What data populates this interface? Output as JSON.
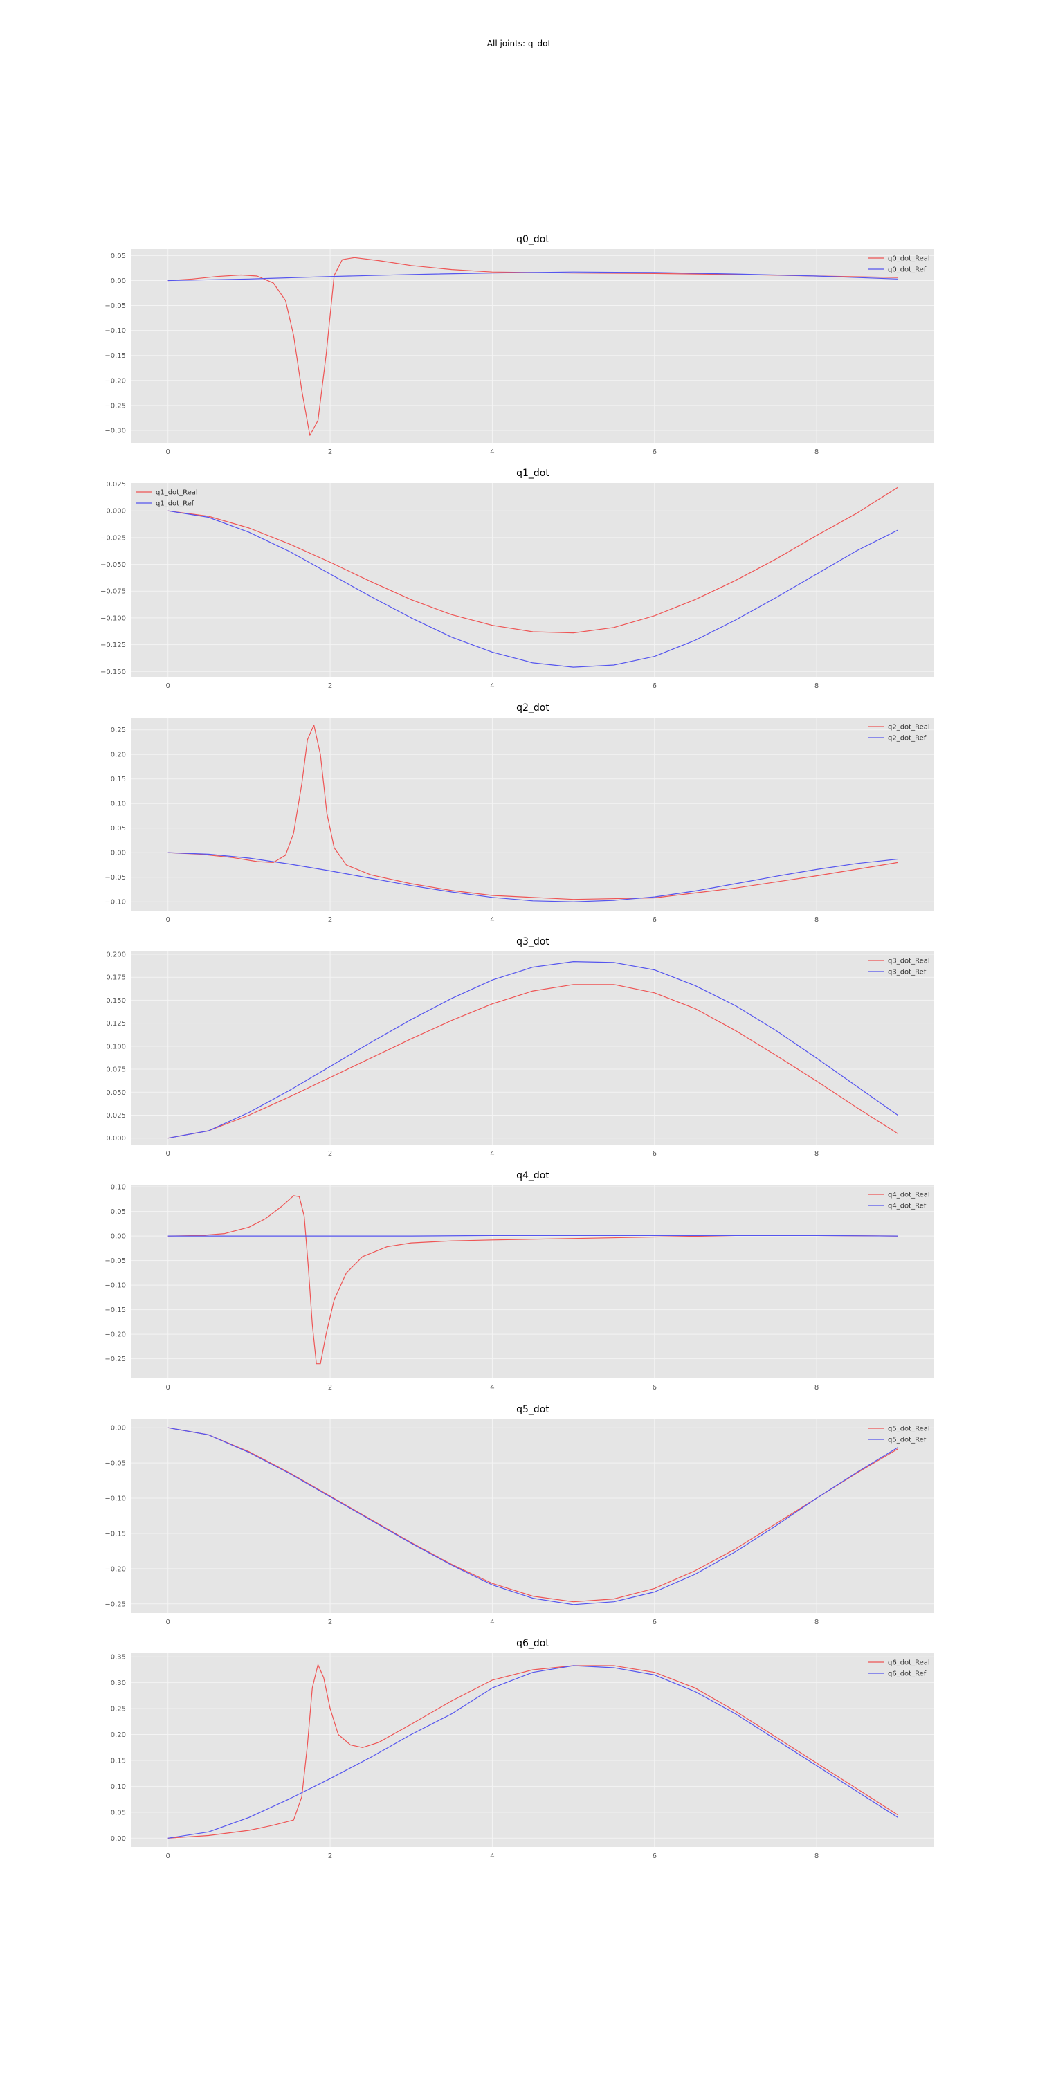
{
  "figure": {
    "title": "All joints: q_dot"
  },
  "colors": {
    "real": "#ee5555",
    "ref": "#5555ee",
    "panel_bg": "#e5e5e5",
    "grid": "#f4f4f4",
    "tick_text": "#555555"
  },
  "chart_data": [
    {
      "type": "line",
      "title": "q0_dot",
      "xlim": [
        -0.45,
        9.45
      ],
      "ylim": [
        -0.325,
        0.063
      ],
      "xticks": [
        0,
        2,
        4,
        6,
        8
      ],
      "yticks": [
        0.05,
        0.0,
        -0.05,
        -0.1,
        -0.15,
        -0.2,
        -0.25,
        -0.3
      ],
      "ytick_labels": [
        "0.05",
        "0.00",
        "−0.05",
        "−0.10",
        "−0.15",
        "−0.20",
        "−0.25",
        "−0.30"
      ],
      "grid": true,
      "legend": "upper-right",
      "series": [
        {
          "name": "q0_dot_Real",
          "color": "#ee5555",
          "x": [
            0,
            0.3,
            0.6,
            0.9,
            1.1,
            1.3,
            1.45,
            1.55,
            1.65,
            1.75,
            1.85,
            1.95,
            2.05,
            2.15,
            2.3,
            2.6,
            3,
            3.5,
            4,
            5,
            6,
            7,
            8,
            9
          ],
          "y": [
            0,
            0.003,
            0.008,
            0.011,
            0.009,
            -0.005,
            -0.04,
            -0.11,
            -0.22,
            -0.31,
            -0.28,
            -0.15,
            0.01,
            0.042,
            0.046,
            0.04,
            0.03,
            0.022,
            0.017,
            0.015,
            0.014,
            0.012,
            0.009,
            0.006
          ]
        },
        {
          "name": "q0_dot_Ref",
          "color": "#5555ee",
          "x": [
            0,
            1,
            2,
            3,
            4,
            5,
            6,
            7,
            8,
            9
          ],
          "y": [
            0,
            0.003,
            0.008,
            0.012,
            0.015,
            0.017,
            0.016,
            0.013,
            0.009,
            0.003
          ]
        }
      ]
    },
    {
      "type": "line",
      "title": "q1_dot",
      "xlim": [
        -0.45,
        9.45
      ],
      "ylim": [
        -0.155,
        0.026
      ],
      "xticks": [
        0,
        2,
        4,
        6,
        8
      ],
      "yticks": [
        0.025,
        0.0,
        -0.025,
        -0.05,
        -0.075,
        -0.1,
        -0.125,
        -0.15
      ],
      "ytick_labels": [
        "0.025",
        "0.000",
        "−0.025",
        "−0.050",
        "−0.075",
        "−0.100",
        "−0.125",
        "−0.150"
      ],
      "grid": true,
      "legend": "upper-left",
      "series": [
        {
          "name": "q1_dot_Real",
          "color": "#ee5555",
          "x": [
            0,
            0.5,
            1,
            1.5,
            2,
            2.5,
            3,
            3.5,
            4,
            4.5,
            5,
            5.5,
            6,
            6.5,
            7,
            7.5,
            8,
            8.5,
            9
          ],
          "y": [
            0,
            -0.005,
            -0.016,
            -0.031,
            -0.048,
            -0.066,
            -0.083,
            -0.097,
            -0.107,
            -0.113,
            -0.114,
            -0.109,
            -0.098,
            -0.083,
            -0.065,
            -0.045,
            -0.023,
            -0.002,
            0.022
          ]
        },
        {
          "name": "q1_dot_Ref",
          "color": "#5555ee",
          "x": [
            0,
            0.5,
            1,
            1.5,
            2,
            2.5,
            3,
            3.5,
            4,
            4.5,
            5,
            5.5,
            6,
            6.5,
            7,
            7.5,
            8,
            8.5,
            9
          ],
          "y": [
            0,
            -0.006,
            -0.02,
            -0.038,
            -0.059,
            -0.08,
            -0.1,
            -0.118,
            -0.132,
            -0.142,
            -0.146,
            -0.144,
            -0.136,
            -0.121,
            -0.102,
            -0.081,
            -0.059,
            -0.037,
            -0.018
          ]
        }
      ]
    },
    {
      "type": "line",
      "title": "q2_dot",
      "xlim": [
        -0.45,
        9.45
      ],
      "ylim": [
        -0.118,
        0.275
      ],
      "xticks": [
        0,
        2,
        4,
        6,
        8
      ],
      "yticks": [
        0.25,
        0.2,
        0.15,
        0.1,
        0.05,
        0.0,
        -0.05,
        -0.1
      ],
      "ytick_labels": [
        "0.25",
        "0.20",
        "0.15",
        "0.10",
        "0.05",
        "0.00",
        "−0.05",
        "−0.10"
      ],
      "grid": true,
      "legend": "upper-right",
      "series": [
        {
          "name": "q2_dot_Real",
          "color": "#ee5555",
          "x": [
            0,
            0.4,
            0.8,
            1.1,
            1.3,
            1.45,
            1.55,
            1.65,
            1.72,
            1.8,
            1.88,
            1.96,
            2.05,
            2.2,
            2.5,
            3,
            3.5,
            4,
            5,
            6,
            7,
            8,
            9
          ],
          "y": [
            0,
            -0.003,
            -0.01,
            -0.018,
            -0.02,
            -0.005,
            0.04,
            0.14,
            0.23,
            0.26,
            0.2,
            0.08,
            0.01,
            -0.025,
            -0.045,
            -0.063,
            -0.077,
            -0.087,
            -0.095,
            -0.092,
            -0.072,
            -0.047,
            -0.02
          ]
        },
        {
          "name": "q2_dot_Ref",
          "color": "#5555ee",
          "x": [
            0,
            0.5,
            1,
            1.5,
            2,
            2.5,
            3,
            3.5,
            4,
            4.5,
            5,
            5.5,
            6,
            6.5,
            7,
            7.5,
            8,
            8.5,
            9
          ],
          "y": [
            0,
            -0.003,
            -0.011,
            -0.023,
            -0.037,
            -0.052,
            -0.067,
            -0.08,
            -0.091,
            -0.098,
            -0.1,
            -0.097,
            -0.09,
            -0.078,
            -0.063,
            -0.048,
            -0.034,
            -0.022,
            -0.013
          ]
        }
      ]
    },
    {
      "type": "line",
      "title": "q3_dot",
      "xlim": [
        -0.45,
        9.45
      ],
      "ylim": [
        -0.007,
        0.203
      ],
      "xticks": [
        0,
        2,
        4,
        6,
        8
      ],
      "yticks": [
        0.2,
        0.175,
        0.15,
        0.125,
        0.1,
        0.075,
        0.05,
        0.025,
        0.0
      ],
      "ytick_labels": [
        "0.200",
        "0.175",
        "0.150",
        "0.125",
        "0.100",
        "0.075",
        "0.050",
        "0.025",
        "0.000"
      ],
      "grid": true,
      "legend": "upper-right",
      "series": [
        {
          "name": "q3_dot_Real",
          "color": "#ee5555",
          "x": [
            0,
            0.5,
            1,
            1.5,
            2,
            2.5,
            3,
            3.5,
            4,
            4.5,
            5,
            5.5,
            6,
            6.5,
            7,
            7.5,
            8,
            8.5,
            9
          ],
          "y": [
            0,
            0.008,
            0.025,
            0.045,
            0.066,
            0.087,
            0.108,
            0.128,
            0.146,
            0.16,
            0.167,
            0.167,
            0.158,
            0.141,
            0.117,
            0.09,
            0.062,
            0.033,
            0.005
          ]
        },
        {
          "name": "q3_dot_Ref",
          "color": "#5555ee",
          "x": [
            0,
            0.5,
            1,
            1.5,
            2,
            2.5,
            3,
            3.5,
            4,
            4.5,
            5,
            5.5,
            6,
            6.5,
            7,
            7.5,
            8,
            8.5,
            9
          ],
          "y": [
            0,
            0.008,
            0.028,
            0.052,
            0.078,
            0.104,
            0.129,
            0.152,
            0.172,
            0.186,
            0.192,
            0.191,
            0.183,
            0.166,
            0.144,
            0.117,
            0.087,
            0.056,
            0.025
          ]
        }
      ]
    },
    {
      "type": "line",
      "title": "q4_dot",
      "xlim": [
        -0.45,
        9.45
      ],
      "ylim": [
        -0.29,
        0.103
      ],
      "xticks": [
        0,
        2,
        4,
        6,
        8
      ],
      "yticks": [
        0.1,
        0.05,
        0.0,
        -0.05,
        -0.1,
        -0.15,
        -0.2,
        -0.25
      ],
      "ytick_labels": [
        "0.10",
        "0.05",
        "0.00",
        "−0.05",
        "−0.10",
        "−0.15",
        "−0.20",
        "−0.25"
      ],
      "grid": true,
      "legend": "upper-right",
      "series": [
        {
          "name": "q4_dot_Real",
          "color": "#ee5555",
          "x": [
            0,
            0.4,
            0.7,
            1,
            1.2,
            1.4,
            1.55,
            1.62,
            1.68,
            1.73,
            1.78,
            1.83,
            1.88,
            1.95,
            2.05,
            2.2,
            2.4,
            2.7,
            3,
            3.5,
            4,
            5,
            6,
            7,
            8,
            9
          ],
          "y": [
            0,
            0.001,
            0.005,
            0.018,
            0.035,
            0.06,
            0.082,
            0.08,
            0.04,
            -0.06,
            -0.18,
            -0.26,
            -0.26,
            -0.2,
            -0.13,
            -0.075,
            -0.042,
            -0.022,
            -0.014,
            -0.01,
            -0.008,
            -0.005,
            -0.002,
            0.001,
            0.001,
            0
          ]
        },
        {
          "name": "q4_dot_Ref",
          "color": "#5555ee",
          "x": [
            0,
            1,
            2,
            3,
            4,
            5,
            6,
            7,
            8,
            9
          ],
          "y": [
            0,
            0,
            0,
            0,
            0.001,
            0.001,
            0.001,
            0.001,
            0.001,
            0
          ]
        }
      ]
    },
    {
      "type": "line",
      "title": "q5_dot",
      "xlim": [
        -0.45,
        9.45
      ],
      "ylim": [
        -0.263,
        0.012
      ],
      "xticks": [
        0,
        2,
        4,
        6,
        8
      ],
      "yticks": [
        0.0,
        -0.05,
        -0.1,
        -0.15,
        -0.2,
        -0.25
      ],
      "ytick_labels": [
        "0.00",
        "−0.05",
        "−0.10",
        "−0.15",
        "−0.20",
        "−0.25"
      ],
      "grid": true,
      "legend": "upper-right",
      "series": [
        {
          "name": "q5_dot_Real",
          "color": "#ee5555",
          "x": [
            0,
            0.5,
            1,
            1.5,
            2,
            2.5,
            3,
            3.5,
            4,
            4.5,
            5,
            5.5,
            6,
            6.5,
            7,
            7.5,
            8,
            8.5,
            9
          ],
          "y": [
            0,
            -0.01,
            -0.034,
            -0.064,
            -0.097,
            -0.13,
            -0.163,
            -0.194,
            -0.221,
            -0.239,
            -0.247,
            -0.243,
            -0.228,
            -0.203,
            -0.172,
            -0.136,
            -0.1,
            -0.064,
            -0.03
          ]
        },
        {
          "name": "q5_dot_Ref",
          "color": "#5555ee",
          "x": [
            0,
            0.5,
            1,
            1.5,
            2,
            2.5,
            3,
            3.5,
            4,
            4.5,
            5,
            5.5,
            6,
            6.5,
            7,
            7.5,
            8,
            8.5,
            9
          ],
          "y": [
            0,
            -0.01,
            -0.035,
            -0.065,
            -0.098,
            -0.131,
            -0.164,
            -0.195,
            -0.223,
            -0.242,
            -0.251,
            -0.247,
            -0.233,
            -0.208,
            -0.176,
            -0.139,
            -0.1,
            -0.063,
            -0.028
          ]
        }
      ]
    },
    {
      "type": "line",
      "title": "q6_dot",
      "xlim": [
        -0.45,
        9.45
      ],
      "ylim": [
        -0.017,
        0.357
      ],
      "xticks": [
        0,
        2,
        4,
        6,
        8
      ],
      "yticks": [
        0.35,
        0.3,
        0.25,
        0.2,
        0.15,
        0.1,
        0.05,
        0.0
      ],
      "ytick_labels": [
        "0.35",
        "0.30",
        "0.25",
        "0.20",
        "0.15",
        "0.10",
        "0.05",
        "0.00"
      ],
      "grid": true,
      "legend": "upper-right",
      "series": [
        {
          "name": "q6_dot_Real",
          "color": "#ee5555",
          "x": [
            0,
            0.5,
            1,
            1.3,
            1.55,
            1.65,
            1.72,
            1.78,
            1.85,
            1.92,
            2,
            2.1,
            2.25,
            2.4,
            2.6,
            3,
            3.5,
            4,
            4.5,
            5,
            5.5,
            6,
            6.5,
            7,
            7.5,
            8,
            8.5,
            9
          ],
          "y": [
            0,
            0.005,
            0.015,
            0.025,
            0.035,
            0.08,
            0.18,
            0.29,
            0.335,
            0.31,
            0.25,
            0.2,
            0.18,
            0.175,
            0.185,
            0.22,
            0.265,
            0.305,
            0.325,
            0.333,
            0.333,
            0.32,
            0.29,
            0.245,
            0.195,
            0.145,
            0.095,
            0.045
          ]
        },
        {
          "name": "q6_dot_Ref",
          "color": "#5555ee",
          "x": [
            0,
            0.5,
            1,
            1.5,
            2,
            2.5,
            3,
            3.5,
            4,
            4.5,
            5,
            5.5,
            6,
            6.5,
            7,
            7.5,
            8,
            8.5,
            9
          ],
          "y": [
            0,
            0.012,
            0.04,
            0.076,
            0.115,
            0.156,
            0.2,
            0.24,
            0.29,
            0.32,
            0.333,
            0.329,
            0.315,
            0.283,
            0.24,
            0.19,
            0.14,
            0.09,
            0.04
          ]
        }
      ]
    }
  ]
}
